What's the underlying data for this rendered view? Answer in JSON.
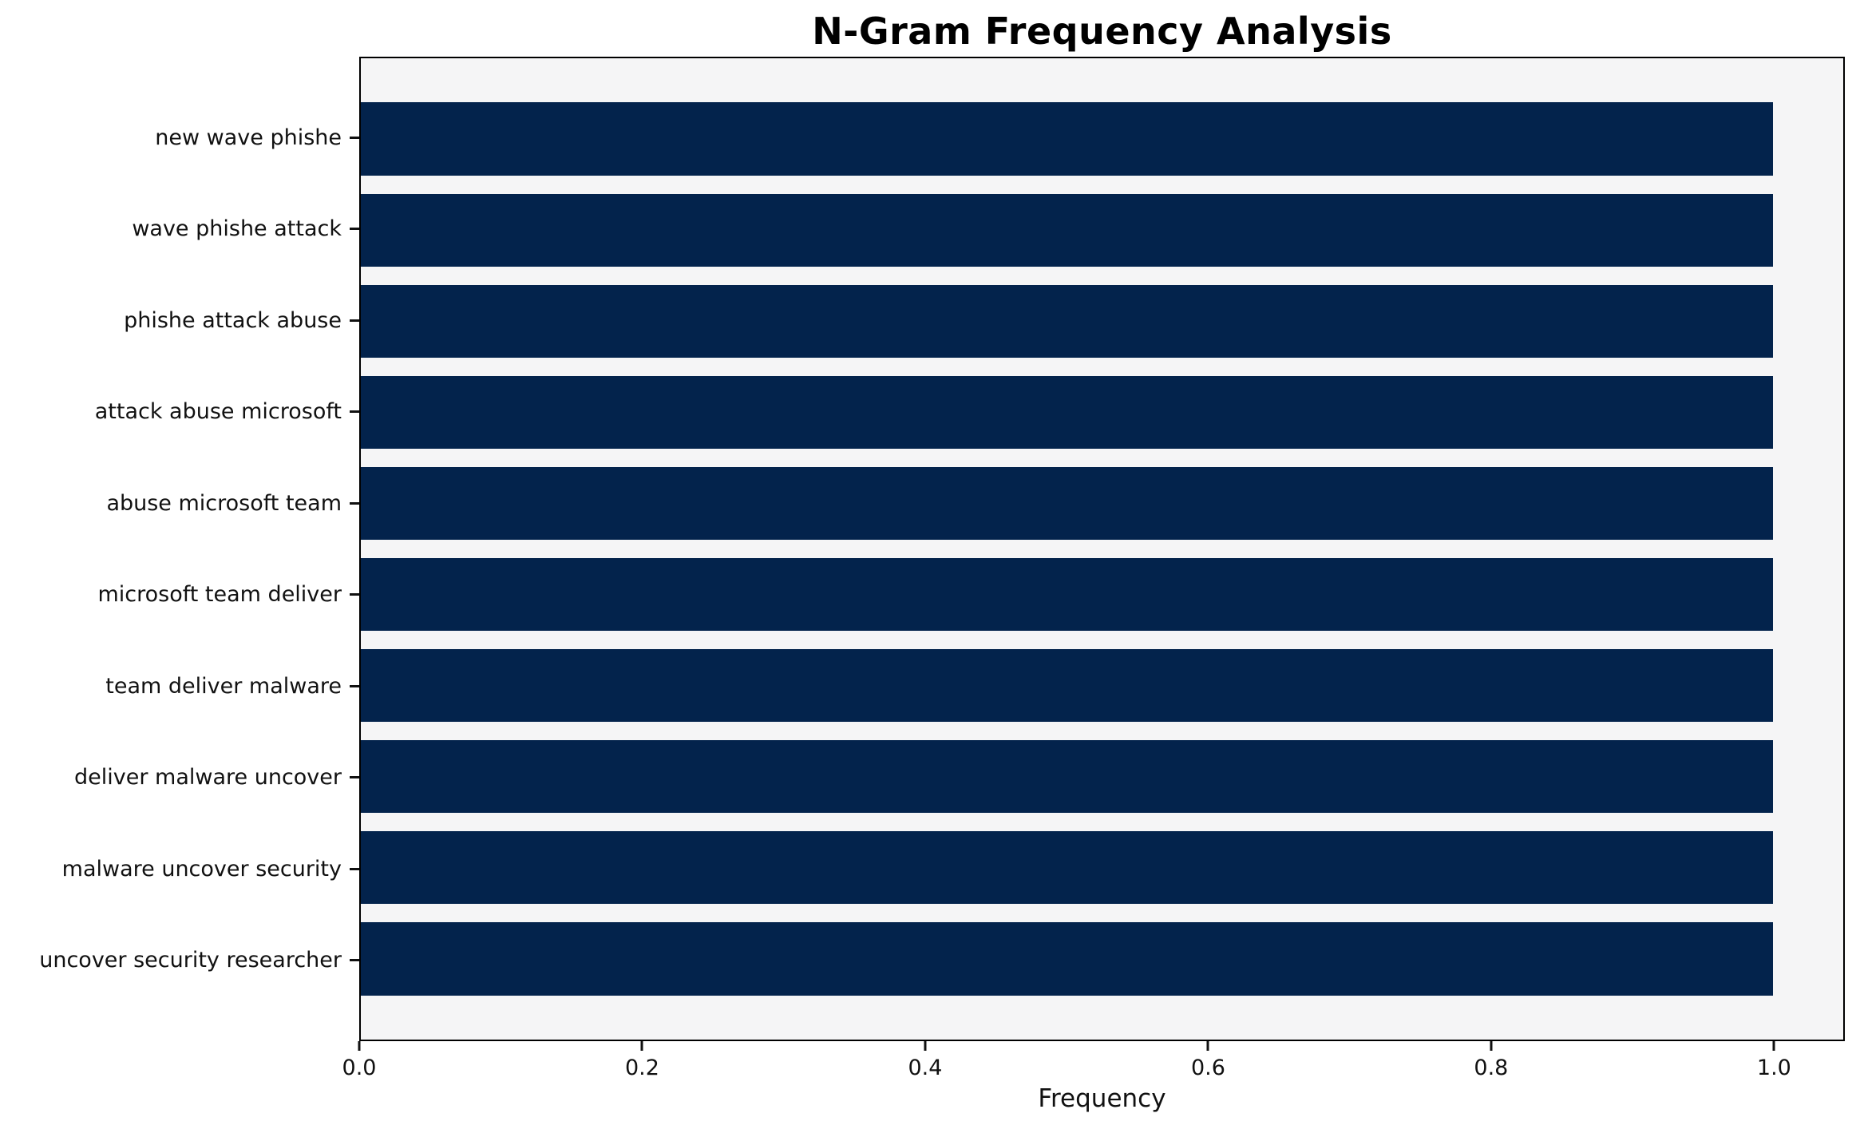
{
  "title": "N-Gram Frequency Analysis",
  "chart_data": {
    "type": "bar",
    "orientation": "horizontal",
    "title": "N-Gram Frequency Analysis",
    "xlabel": "Frequency",
    "ylabel": "",
    "categories": [
      "new wave phishe",
      "wave phishe attack",
      "phishe attack abuse",
      "attack abuse microsoft",
      "abuse microsoft team",
      "microsoft team deliver",
      "team deliver malware",
      "deliver malware uncover",
      "malware uncover security",
      "uncover security researcher"
    ],
    "values": [
      1.0,
      1.0,
      1.0,
      1.0,
      1.0,
      1.0,
      1.0,
      1.0,
      1.0,
      1.0
    ],
    "xlim": [
      0,
      1.05
    ],
    "xticks": [
      "0.0",
      "0.2",
      "0.4",
      "0.6",
      "0.8",
      "1.0"
    ],
    "xtick_values": [
      0.0,
      0.2,
      0.4,
      0.6,
      0.8,
      1.0
    ],
    "grid": false,
    "legend": null,
    "bar_color": "#03234c",
    "plot_background": "#f5f5f6",
    "figure_background": "#ffffff"
  }
}
